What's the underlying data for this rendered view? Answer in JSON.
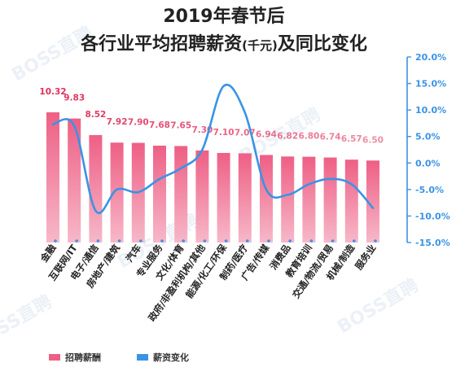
{
  "title": {
    "line1": "2019年春节后",
    "line2_main": "各行业平均招聘薪资",
    "line2_unit": "(千元)",
    "line2_tail": "及同比变化"
  },
  "watermark": "BOSS直聘",
  "colors": {
    "bar_top": "#ee5f85",
    "bar_bottom": "#f7b8c9",
    "line": "#3a93e6",
    "label": "#e0305c"
  },
  "legend": [
    {
      "label": "招聘薪酬",
      "color": "#ee5f85"
    },
    {
      "label": "薪资变化",
      "color": "#3a93e6"
    }
  ],
  "chart_data": {
    "type": "bar+line",
    "title": "2019年春节后各行业平均招聘薪资(千元)及同比变化",
    "categories": [
      "金融",
      "互联网/IT",
      "电子/通信",
      "房地产/建筑",
      "汽车",
      "专业服务",
      "文化/体育",
      "政府/非盈利机构/其他",
      "能源/化工/环保",
      "制药/医疗",
      "广告/传媒",
      "消费品",
      "教育培训",
      "交通/物流/贸易",
      "机械/制造",
      "服务业"
    ],
    "series": [
      {
        "name": "招聘薪酬",
        "type": "bar",
        "axis": "left",
        "values": [
          10.32,
          9.83,
          8.52,
          7.92,
          7.9,
          7.68,
          7.65,
          7.3,
          7.1,
          7.07,
          6.94,
          6.82,
          6.8,
          6.74,
          6.57,
          6.5
        ]
      },
      {
        "name": "薪资变化",
        "type": "line",
        "axis": "right",
        "unit": "%",
        "values": [
          7.3,
          7.0,
          -9.0,
          -5.0,
          -5.5,
          -3.0,
          -1.0,
          2.5,
          14.5,
          9.5,
          -5.0,
          -6.0,
          -4.0,
          -3.0,
          -4.0,
          -8.5
        ]
      }
    ],
    "value_labels": [
      "10.32",
      "9.83",
      "8.52",
      "7.92",
      "7.90",
      "7.68",
      "7.65",
      "7.30",
      "7.10",
      "7.07",
      "6.94",
      "6.82",
      "6.80",
      "6.74",
      "6.57",
      "6.50"
    ],
    "y_right": {
      "ticks": [
        "20.0%",
        "15.0%",
        "10.0%",
        "5.0%",
        "0.0%",
        "-5.0%",
        "-10.0%",
        "-15.0%"
      ],
      "tick_values": [
        20,
        15,
        10,
        5,
        0,
        -5,
        -10,
        -15
      ],
      "range": [
        -15,
        20
      ]
    },
    "y_left_range": [
      0,
      12.5
    ],
    "grid": false,
    "legend_position": "bottom-left"
  }
}
